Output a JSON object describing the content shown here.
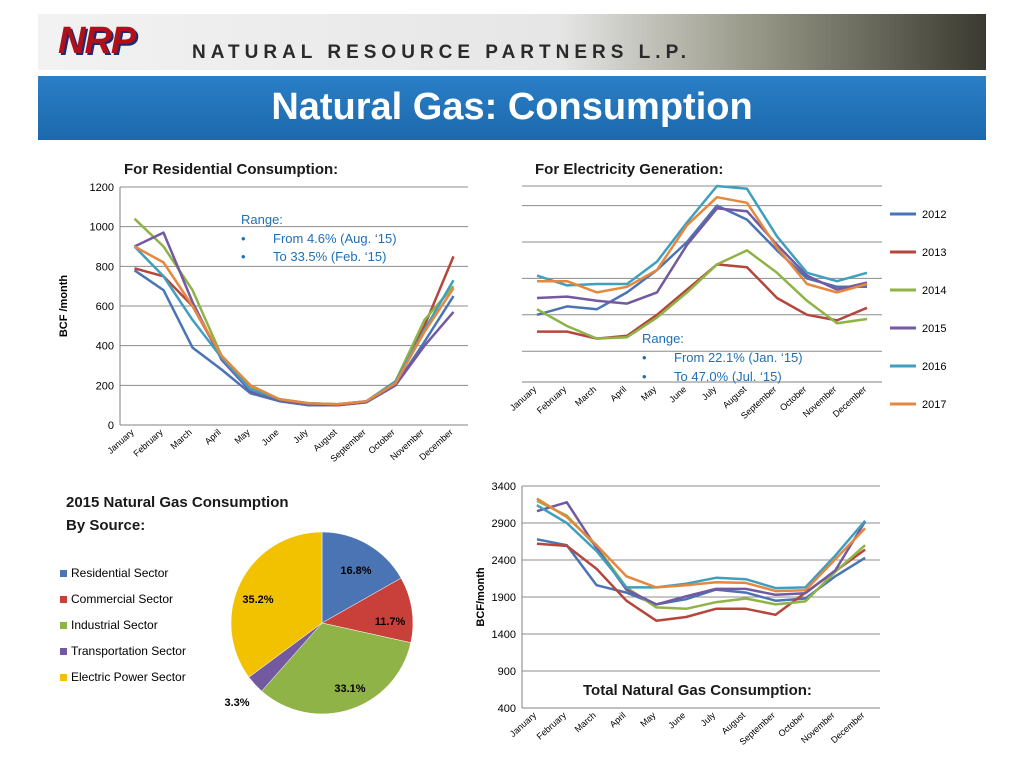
{
  "header": {
    "logo_text": "NRP",
    "company": "NATURAL RESOURCE PARTNERS L.P.",
    "title": "Natural Gas: Consumption"
  },
  "months": [
    "January",
    "February",
    "March",
    "April",
    "May",
    "June",
    "July",
    "August",
    "September",
    "October",
    "November",
    "December"
  ],
  "series_colors": {
    "2012": "#4a74b4",
    "2013": "#b5463c",
    "2014": "#8fb347",
    "2015": "#735aa0",
    "2016": "#3f9fbd",
    "2017": "#e6873e"
  },
  "chart_data": [
    {
      "type": "line",
      "title": "For Residential Consumption:",
      "ylabel": "BCF /month",
      "ylim": [
        0,
        1200
      ],
      "yticks": [
        0,
        200,
        400,
        600,
        800,
        1000,
        1200
      ],
      "annotation": [
        "Range:",
        "From 4.6% (Aug. ‘15)",
        "To 33.5% (Feb. ‘15)"
      ],
      "series": [
        {
          "name": "2012",
          "values": [
            780,
            680,
            390,
            280,
            160,
            120,
            100,
            100,
            115,
            200,
            420,
            650
          ]
        },
        {
          "name": "2013",
          "values": [
            790,
            750,
            600,
            340,
            180,
            125,
            105,
            100,
            115,
            220,
            500,
            850
          ]
        },
        {
          "name": "2014",
          "values": [
            1040,
            900,
            680,
            350,
            190,
            130,
            110,
            105,
            120,
            220,
            530,
            700
          ]
        },
        {
          "name": "2015",
          "values": [
            900,
            970,
            620,
            330,
            170,
            125,
            105,
            105,
            115,
            200,
            400,
            570
          ]
        },
        {
          "name": "2016",
          "values": [
            900,
            750,
            530,
            340,
            180,
            130,
            110,
            105,
            120,
            220,
            480,
            730
          ]
        },
        {
          "name": "2017",
          "values": [
            900,
            820,
            600,
            350,
            200,
            130,
            110,
            105,
            120,
            210,
            470,
            690
          ]
        }
      ]
    },
    {
      "type": "line",
      "title": "For Electricity Generation:",
      "ylim": [
        400,
        1100
      ],
      "annotation": [
        "Range:",
        "From 22.1% (Jan. ‘15)",
        "To 47.0% (Jul. ‘15)"
      ],
      "legend": [
        "2012",
        "2013",
        "2014",
        "2015",
        "2016",
        "2017"
      ],
      "series": [
        {
          "name": "2012",
          "values": [
            640,
            670,
            660,
            720,
            800,
            900,
            1030,
            980,
            870,
            770,
            740,
            740
          ]
        },
        {
          "name": "2013",
          "values": [
            580,
            580,
            555,
            565,
            640,
            730,
            820,
            810,
            700,
            640,
            620,
            665
          ]
        },
        {
          "name": "2014",
          "values": [
            660,
            600,
            555,
            560,
            630,
            720,
            820,
            870,
            790,
            690,
            610,
            625
          ]
        },
        {
          "name": "2015",
          "values": [
            700,
            705,
            690,
            680,
            720,
            890,
            1020,
            1010,
            890,
            780,
            730,
            755
          ]
        },
        {
          "name": "2016",
          "values": [
            780,
            745,
            750,
            750,
            830,
            970,
            1100,
            1090,
            920,
            790,
            760,
            790
          ]
        },
        {
          "name": "2017",
          "values": [
            760,
            760,
            720,
            740,
            800,
            960,
            1060,
            1040,
            880,
            750,
            720,
            750
          ]
        }
      ]
    },
    {
      "type": "pie",
      "title": "2015 Natural Gas Consumption By Source:",
      "title_lines": [
        "2015 Natural Gas Consumption",
        "By Source:"
      ],
      "labels": [
        "Residential Sector",
        "Commercial Sector",
        "Industrial Sector",
        "Transportation Sector",
        "Electric Power Sector"
      ],
      "values": [
        16.8,
        11.7,
        33.1,
        3.3,
        35.2
      ],
      "value_labels": [
        "16.8%",
        "11.7%",
        "33.1%",
        "3.3%",
        "35.2%"
      ],
      "colors": [
        "#4a74b4",
        "#c9403a",
        "#8fb347",
        "#735aa0",
        "#f2c200"
      ]
    },
    {
      "type": "line",
      "title": "Total Natural Gas Consumption:",
      "ylabel": "BCF/month",
      "ylim": [
        400,
        3400
      ],
      "yticks": [
        400,
        900,
        1400,
        1900,
        2400,
        2900,
        3400
      ],
      "series": [
        {
          "name": "2012",
          "values": [
            2680,
            2600,
            2060,
            1960,
            1800,
            1870,
            2000,
            1960,
            1850,
            1880,
            2180,
            2430
          ]
        },
        {
          "name": "2013",
          "values": [
            2620,
            2590,
            2280,
            1850,
            1580,
            1630,
            1740,
            1740,
            1660,
            1960,
            2250,
            2540
          ]
        },
        {
          "name": "2014",
          "values": [
            3200,
            3000,
            2580,
            2030,
            1760,
            1740,
            1830,
            1880,
            1800,
            1840,
            2240,
            2600
          ]
        },
        {
          "name": "2015",
          "values": [
            3060,
            3180,
            2560,
            2000,
            1800,
            1910,
            2010,
            2010,
            1930,
            1950,
            2260,
            2920
          ]
        },
        {
          "name": "2016",
          "values": [
            3140,
            2900,
            2520,
            2030,
            2030,
            2080,
            2160,
            2140,
            2020,
            2030,
            2460,
            2930
          ]
        },
        {
          "name": "2017",
          "values": [
            3230,
            2980,
            2600,
            2180,
            2030,
            2060,
            2100,
            2090,
            1980,
            1990,
            2410,
            2830
          ]
        }
      ]
    }
  ]
}
